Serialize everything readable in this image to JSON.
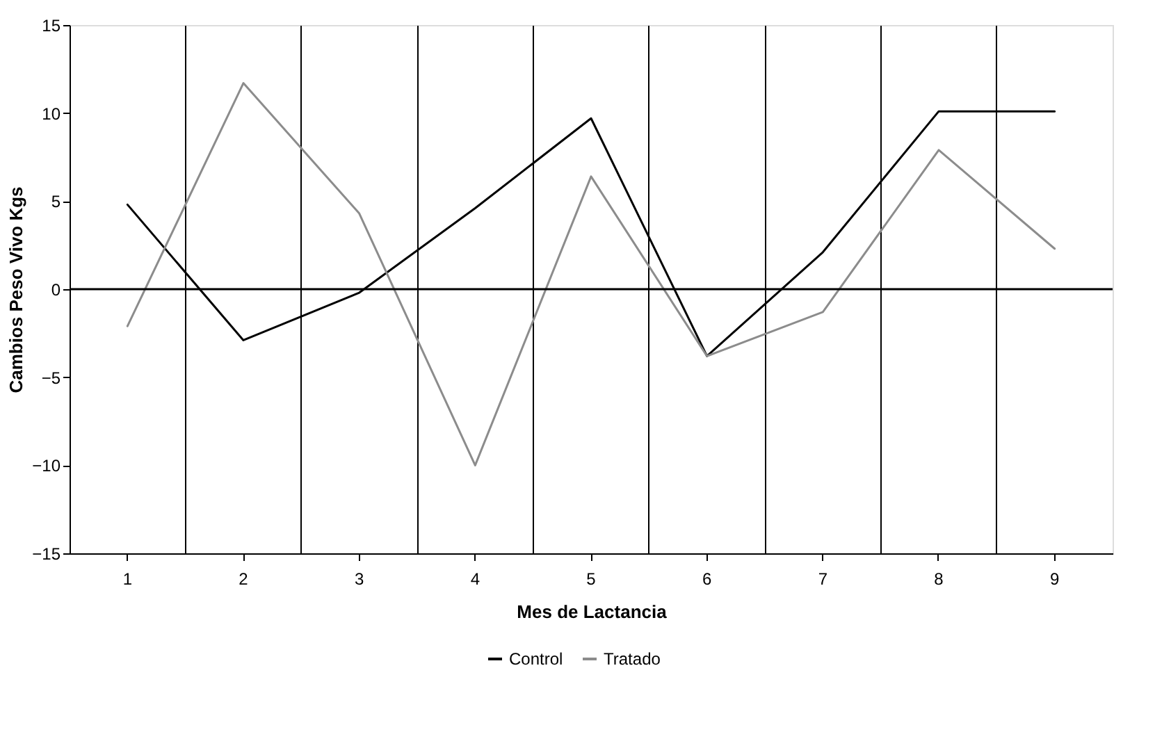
{
  "chart_data": {
    "type": "line",
    "xlabel": "Mes de Lactancia",
    "ylabel": "Cambios Peso Vivo Kgs",
    "categories": [
      "1",
      "2",
      "3",
      "4",
      "5",
      "6",
      "7",
      "8",
      "9"
    ],
    "series": [
      {
        "name": "Control",
        "color": "#000000",
        "values": [
          4.8,
          -2.9,
          -0.2,
          4.6,
          9.7,
          -3.8,
          2.1,
          10.1,
          10.1
        ]
      },
      {
        "name": "Tratado",
        "color": "#8c8c8c",
        "values": [
          -2.1,
          11.7,
          4.3,
          -10,
          6.4,
          -3.8,
          -1.3,
          7.9,
          2.3
        ]
      }
    ],
    "ylim": [
      -15,
      15
    ],
    "yticks": [
      -15,
      -10,
      -5,
      0,
      5,
      10,
      15
    ],
    "ref_lines": [
      {
        "axis": "y",
        "value": 0,
        "color": "#000000"
      }
    ],
    "grid": "x",
    "legend": "bottom",
    "marker": "none",
    "line_style": "solid"
  }
}
